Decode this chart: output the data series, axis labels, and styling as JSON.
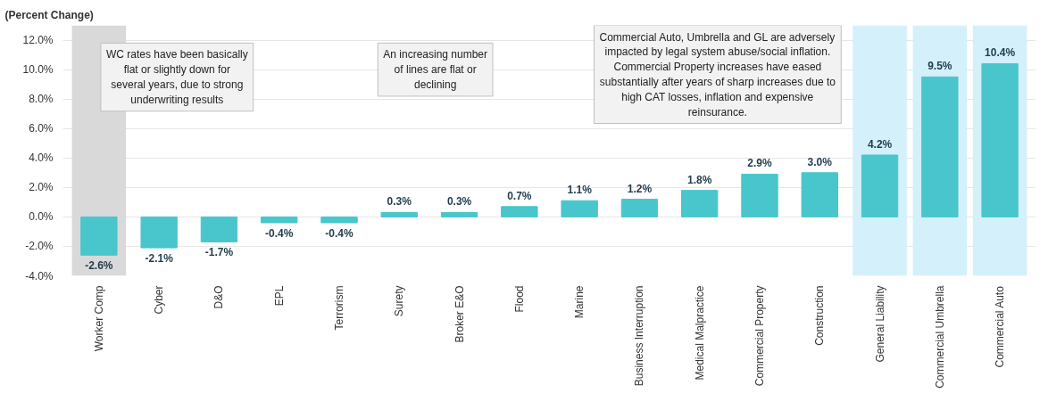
{
  "chart_data": {
    "type": "bar",
    "ylabel": "(Percent Change)",
    "categories": [
      "Worker Comp",
      "Cyber",
      "D&O",
      "EPL",
      "Terrorism",
      "Surety",
      "Broker E&O",
      "Flood",
      "Marine",
      "Business Interruption",
      "Medical Malpractice",
      "Commercial Property",
      "Construction",
      "General Liability",
      "Commercial Umbrella",
      "Commercial Auto"
    ],
    "values": [
      -2.6,
      -2.1,
      -1.7,
      -0.4,
      -0.4,
      0.3,
      0.3,
      0.7,
      1.1,
      1.2,
      1.8,
      2.9,
      3.0,
      4.2,
      9.5,
      10.4
    ],
    "color": "#48c6cc",
    "ylim": [
      -4,
      13
    ],
    "yticks": [
      {
        "value": -4,
        "label": "-4.0%"
      },
      {
        "value": -2,
        "label": "-2.0%"
      },
      {
        "value": 0,
        "label": "0.0%"
      },
      {
        "value": 2,
        "label": "2.0%"
      },
      {
        "value": 4,
        "label": "4.0%"
      },
      {
        "value": 6,
        "label": "6.0%"
      },
      {
        "value": 8,
        "label": "8.0%"
      },
      {
        "value": 10,
        "label": "10.0%"
      },
      {
        "value": 12,
        "label": "12.0%"
      }
    ],
    "grid": "y",
    "value_labels": [
      "-2.6%",
      "-2.1%",
      "-1.7%",
      "-0.4%",
      "-0.4%",
      "0.3%",
      "0.3%",
      "0.7%",
      "1.1%",
      "1.2%",
      "1.8%",
      "2.9%",
      "3.0%",
      "4.2%",
      "9.5%",
      "10.4%"
    ],
    "bands": [
      {
        "axis": "x",
        "from": "Worker Comp",
        "to": "Worker Comp",
        "color": "#d9d9d9"
      },
      {
        "axis": "x",
        "from": "General Liability",
        "to": "General Liability",
        "color": "#d4f0fa"
      },
      {
        "axis": "x",
        "from": "Commercial Umbrella",
        "to": "Commercial Umbrella",
        "color": "#d4f0fa"
      },
      {
        "axis": "x",
        "from": "Commercial Auto",
        "to": "Commercial Auto",
        "color": "#d4f0fa"
      }
    ],
    "annotations": [
      "WC rates have been basically flat or slightly down for several years, due to strong underwriting results",
      "An increasing number of lines are flat or declining",
      "Commercial Auto, Umbrella and GL are adversely impacted by legal system abuse/social inflation. Commercial Property increases have eased substantially after years of sharp increases due to high CAT losses, inflation and expensive reinsurance."
    ]
  }
}
